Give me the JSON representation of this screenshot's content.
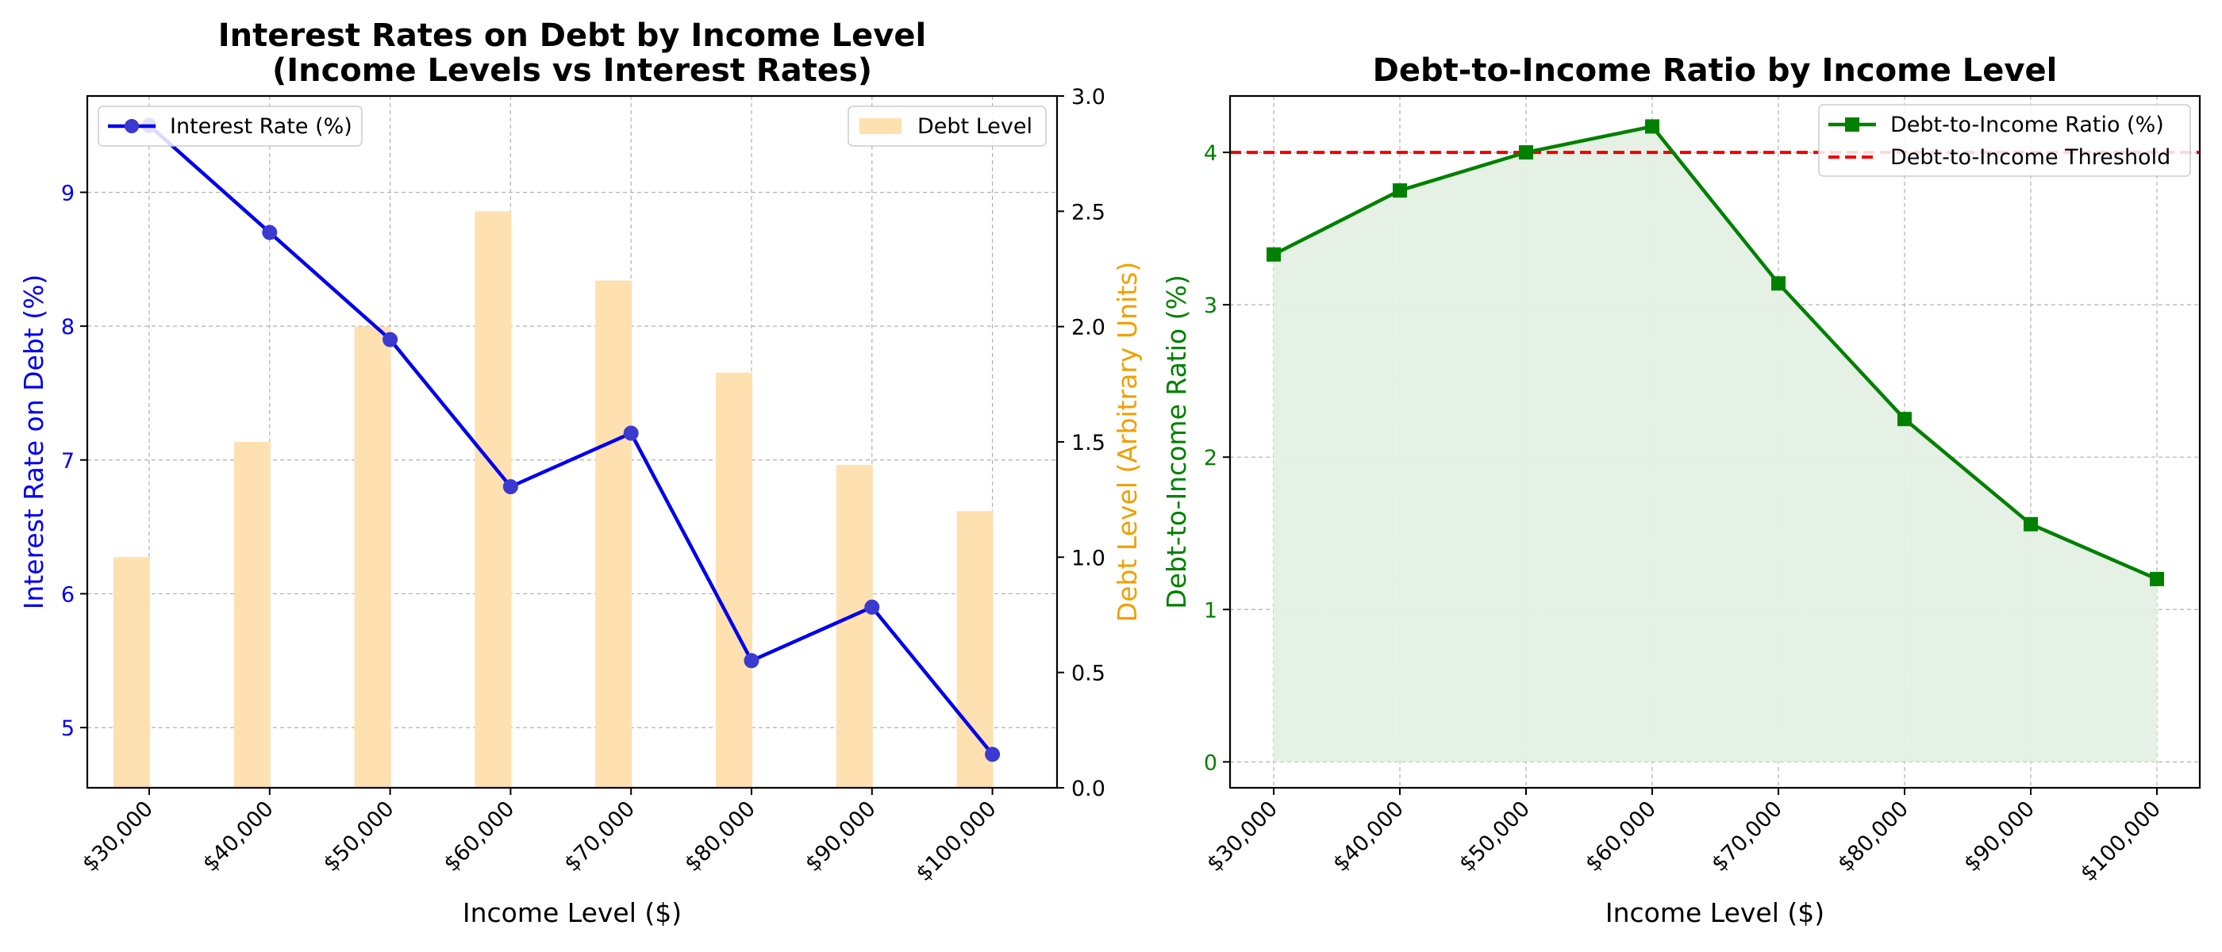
{
  "chart_data": [
    {
      "type": "bar+line",
      "title": "Interest Rates on Debt by Income Level",
      "subtitle": "(Income Levels vs Interest Rates)",
      "xlabel": "Income Level ($)",
      "ylabel": "Interest Rate on Debt (%)",
      "y2label": "Debt Level (Arbitrary Units)",
      "categories": [
        "$30,000",
        "$40,000",
        "$50,000",
        "$60,000",
        "$70,000",
        "$80,000",
        "$90,000",
        "$100,000"
      ],
      "ylim": [
        4.55,
        9.72
      ],
      "yticks": [
        5,
        6,
        7,
        8,
        9
      ],
      "y2lim": [
        0,
        3.0
      ],
      "y2ticks": [
        0.0,
        0.5,
        1.0,
        1.5,
        2.0,
        2.5,
        3.0
      ],
      "grid": true,
      "series": [
        {
          "name": "Interest Rate (%)",
          "kind": "line",
          "axis": "left",
          "color": "#0000ee",
          "marker": "circle",
          "values": [
            9.5,
            8.7,
            7.9,
            6.8,
            7.2,
            5.5,
            5.9,
            4.8
          ]
        },
        {
          "name": "Debt Level",
          "kind": "bar",
          "axis": "right",
          "color": "#ffe0b0",
          "values": [
            1.0,
            1.5,
            2.0,
            2.5,
            2.2,
            1.8,
            1.4,
            1.2
          ]
        }
      ],
      "legends": [
        {
          "placement": "top-left",
          "entries": [
            "Interest Rate (%)"
          ]
        },
        {
          "placement": "top-right",
          "entries": [
            "Debt Level"
          ]
        }
      ],
      "ylabel_color": "#0000ee",
      "y2label_color": "#f0a000"
    },
    {
      "type": "area",
      "title": "Debt-to-Income Ratio by Income Level",
      "xlabel": "Income Level ($)",
      "ylabel": "Debt-to-Income Ratio (%)",
      "categories": [
        "$30,000",
        "$40,000",
        "$50,000",
        "$60,000",
        "$70,000",
        "$80,000",
        "$90,000",
        "$100,000"
      ],
      "ylim": [
        -0.17,
        4.37
      ],
      "yticks": [
        0,
        1,
        2,
        3,
        4
      ],
      "grid": true,
      "series": [
        {
          "name": "Debt-to-Income Ratio (%)",
          "kind": "line",
          "color": "#008000",
          "fill": "#e3f0e3",
          "marker": "square",
          "values": [
            3.33,
            3.75,
            4.0,
            4.17,
            3.14,
            2.25,
            1.56,
            1.2
          ]
        }
      ],
      "reference_lines": [
        {
          "name": "Debt-to-Income Threshold",
          "y": 4,
          "color": "#ee0000",
          "style": "dashed"
        }
      ],
      "legend": {
        "placement": "top-right",
        "entries": [
          "Debt-to-Income Ratio (%)",
          "Debt-to-Income Threshold"
        ]
      },
      "ylabel_color": "#008000"
    }
  ]
}
